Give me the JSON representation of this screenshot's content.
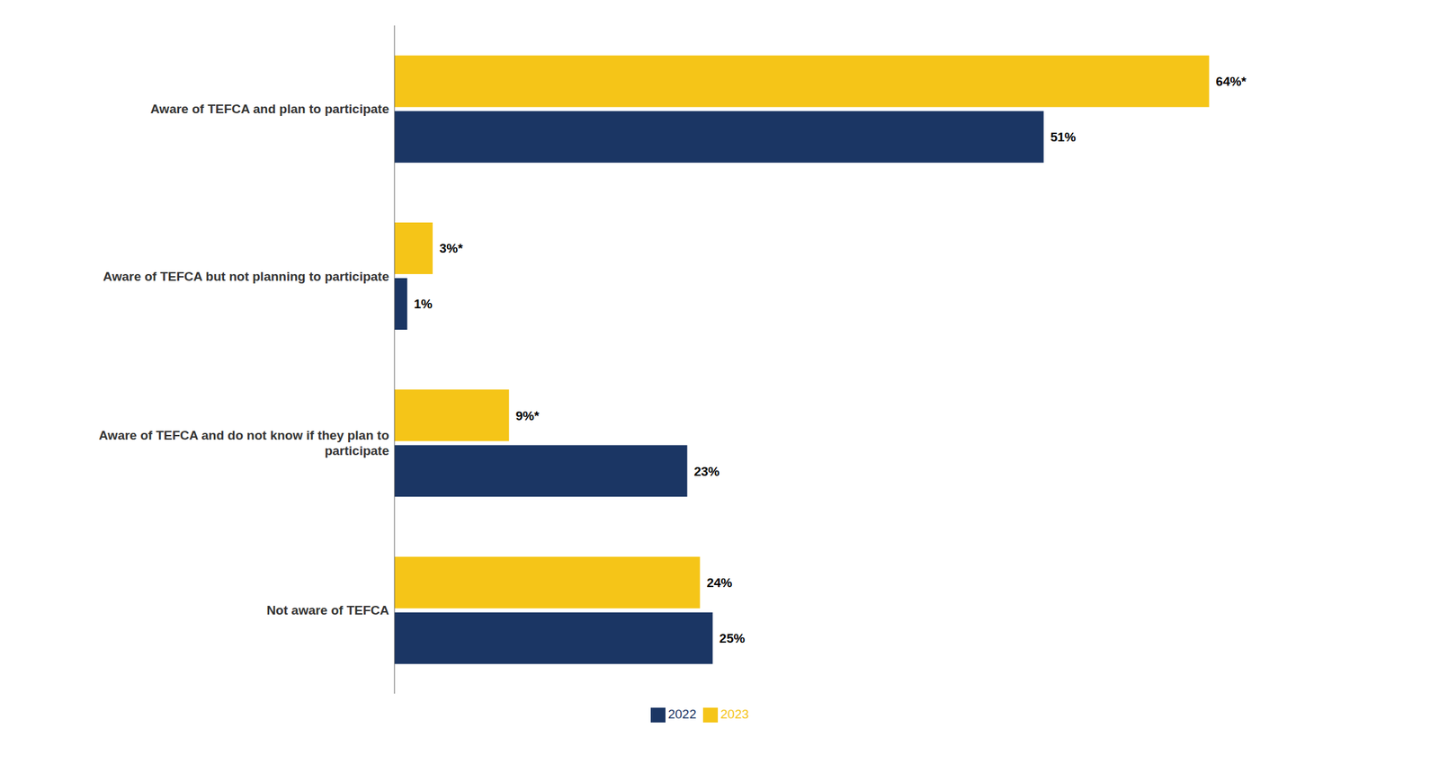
{
  "chart_data": {
    "type": "bar",
    "orientation": "horizontal",
    "categories": [
      "Aware of TEFCA and plan to participate",
      "Aware of TEFCA but not planning to participate",
      "Aware of TEFCA and do not know if they plan to\nparticipate",
      "Not aware of TEFCA"
    ],
    "series": [
      {
        "name": "2023",
        "color": "#F5C518",
        "values": [
          64,
          3,
          9,
          24
        ],
        "value_labels": [
          "64%*",
          "3%*",
          "9%*",
          "24%"
        ]
      },
      {
        "name": "2022",
        "color": "#1B3664",
        "values": [
          51,
          1,
          23,
          25
        ],
        "value_labels": [
          "51%",
          "1%",
          "23%",
          "25%"
        ]
      }
    ],
    "xlim": [
      0,
      78
    ],
    "data_labels": true,
    "tick_labels": "y",
    "grid": false,
    "legend": "bottom"
  }
}
